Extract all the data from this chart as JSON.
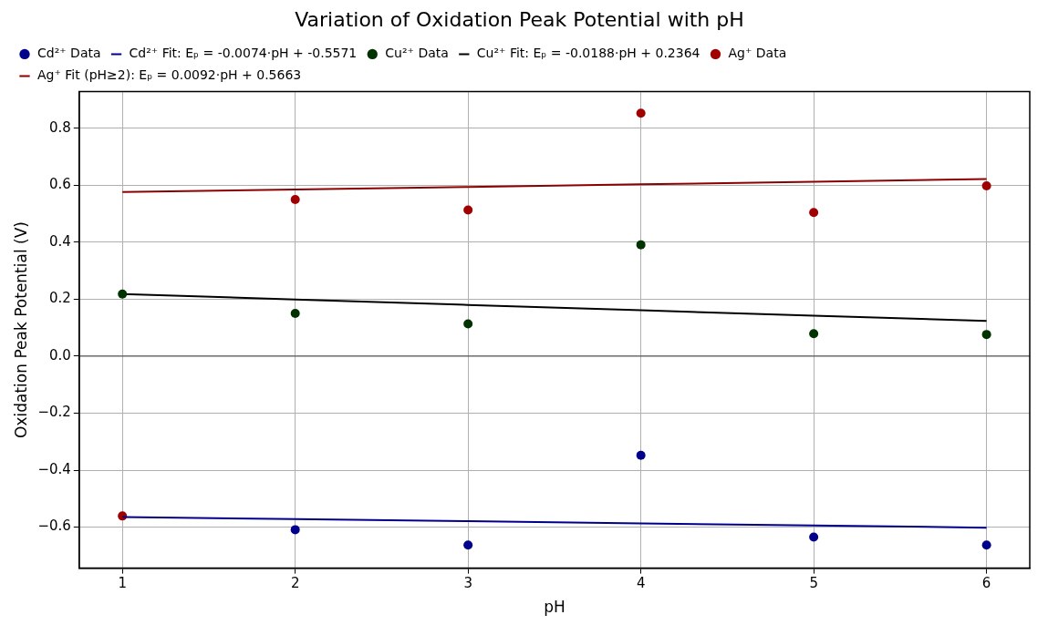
{
  "chart_data": {
    "type": "scatter",
    "title": "Variation of Oxidation Peak Potential with pH",
    "xlabel": "pH",
    "ylabel": "Oxidation Peak Potential (V)",
    "x": [
      1,
      2,
      3,
      4,
      5,
      6
    ],
    "series": [
      {
        "name": "Cd²⁺ Data",
        "type": "scatter",
        "marker": "circle",
        "color": "#00008b",
        "values": [
          null,
          -0.609,
          -0.663,
          -0.348,
          -0.635,
          -0.663
        ]
      },
      {
        "name": "Cd²⁺ Fit: Eₚ = -0.0074·pH + -0.5571",
        "type": "line",
        "marker": "none",
        "color": "#00008b",
        "values": [
          -0.565,
          -0.572,
          -0.579,
          -0.587,
          -0.594,
          -0.602
        ]
      },
      {
        "name": "Cu²⁺ Data",
        "type": "scatter",
        "marker": "circle",
        "color": "#003300",
        "values": [
          0.218,
          0.15,
          0.113,
          0.391,
          0.079,
          0.076
        ]
      },
      {
        "name": "Cu²⁺ Fit: Eₚ = -0.0188·pH + 0.2364",
        "type": "line",
        "marker": "none",
        "color": "#000000",
        "values": [
          0.218,
          0.199,
          0.18,
          0.161,
          0.142,
          0.124
        ]
      },
      {
        "name": "Ag⁺ Data",
        "type": "scatter",
        "marker": "circle",
        "color": "#a00000",
        "values": [
          -0.561,
          0.55,
          0.513,
          0.853,
          0.504,
          0.598
        ]
      },
      {
        "name": "Ag⁺ Fit (pH≥2): Eₚ = 0.0092·pH + 0.5663",
        "type": "line",
        "marker": "none",
        "color": "#8b0000",
        "values": [
          0.576,
          0.585,
          0.594,
          0.603,
          0.612,
          0.622
        ]
      }
    ],
    "xlim": [
      0.75,
      6.25
    ],
    "xticks": [
      1,
      2,
      3,
      4,
      5,
      6
    ],
    "ylim": [
      -0.744,
      0.929
    ],
    "yticks": [
      {
        "value": -0.6,
        "label": "−0.6"
      },
      {
        "value": -0.4,
        "label": "−0.4"
      },
      {
        "value": -0.2,
        "label": "−0.2"
      },
      {
        "value": 0,
        "label": "0.0"
      },
      {
        "value": 0.2,
        "label": "0.2"
      },
      {
        "value": 0.4,
        "label": "0.4"
      },
      {
        "value": 0.6,
        "label": "0.6"
      },
      {
        "value": 0.8,
        "label": "0.8"
      }
    ],
    "ref_lines": [
      {
        "axis": "y",
        "value": 0,
        "color": "#444444"
      }
    ],
    "grid": true,
    "legend": "top left"
  }
}
